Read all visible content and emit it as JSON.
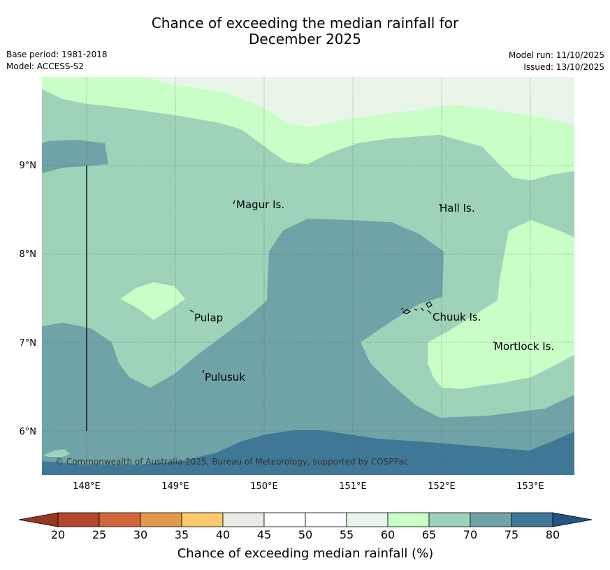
{
  "title_line1": "Chance of exceeding the median rainfall for",
  "title_line2": "December 2025",
  "meta_left": {
    "base_period": "Base period: 1981-2018",
    "model": "Model: ACCESS-S2"
  },
  "meta_right": {
    "model_run": "Model run: 11/10/2025",
    "issued": "Issued: 13/10/2025"
  },
  "map": {
    "lat_labels": [
      "9°N",
      "8°N",
      "7°N",
      "6°N"
    ],
    "lon_labels": [
      "148°E",
      "149°E",
      "150°E",
      "151°E",
      "152°E",
      "153°E"
    ],
    "places": [
      "Magur Is.",
      "Hall Is.",
      "Pulap",
      "Chuuk Is.",
      "Mortlock Is.",
      "Pulusuk"
    ],
    "copyright": "© Commonwealth of Australia 2025, Bureau of Meteorology, supported by COSPPac"
  },
  "colorbar": {
    "ticks": [
      "20",
      "25",
      "30",
      "35",
      "40",
      "45",
      "50",
      "55",
      "60",
      "65",
      "70",
      "75",
      "80"
    ],
    "colors": [
      "#b1482a",
      "#d0663a",
      "#e5994c",
      "#fdcb6a",
      "#ebebe6",
      "#ffffff",
      "#ffffff",
      "#eaf5ea",
      "#c9fec7",
      "#9ed2b9",
      "#6fa3a7",
      "#3f7896"
    ],
    "under_color": "#983720",
    "over_color": "#245484",
    "title": "Chance of exceeding median rainfall (%)"
  }
}
